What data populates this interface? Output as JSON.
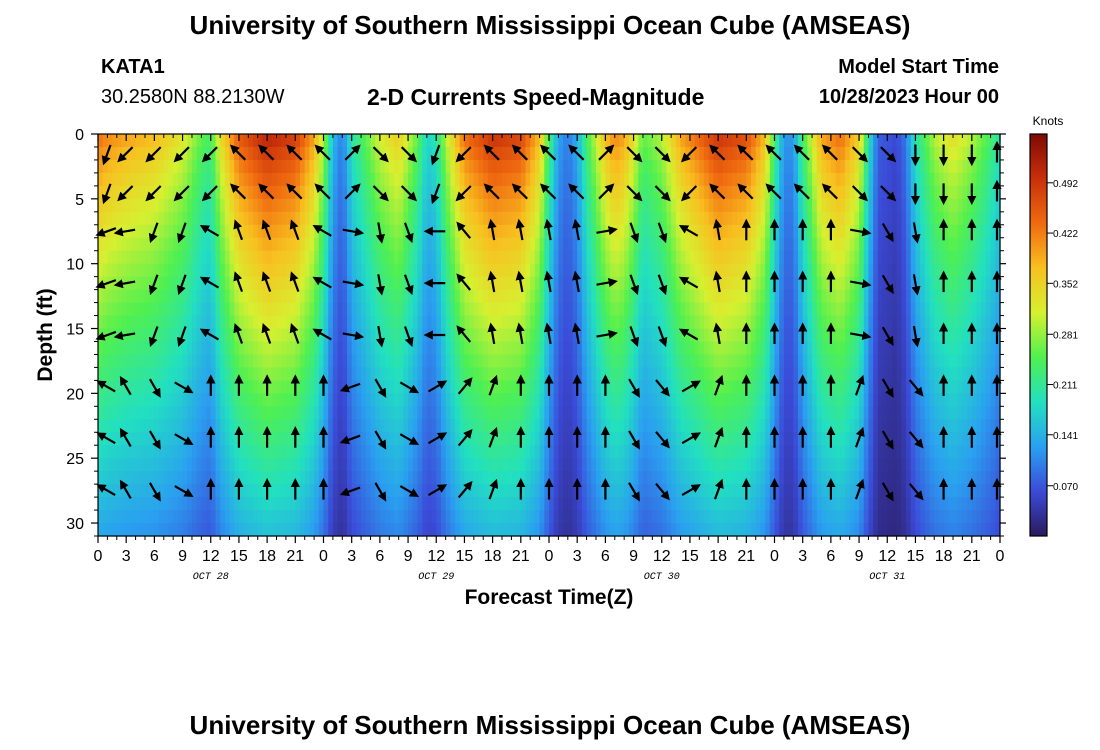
{
  "header": {
    "title": "University of Southern Mississippi Ocean Cube (AMSEAS)",
    "station_name": "KATA1",
    "station_coords": "30.2580N  88.2130W",
    "subtitle": "2-D Currents Speed-Magnitude",
    "model_start_label": "Model Start Time",
    "model_start_value": "10/28/2023 Hour 00"
  },
  "footer": {
    "title": "University of Southern Mississippi Ocean Cube (AMSEAS)"
  },
  "colors": {
    "background": "#ffffff",
    "text": "#000000",
    "colormap": [
      "#2b1a5c",
      "#3b4bd8",
      "#2aa0f0",
      "#22e0c0",
      "#50f050",
      "#d6f030",
      "#f8c020",
      "#f06a10",
      "#c8300a",
      "#7e0a04"
    ]
  },
  "chart_data": {
    "type": "heatmap",
    "title": "2-D Currents Speed-Magnitude",
    "xlabel": "Forecast Time(Z)",
    "ylabel": "Depth (ft)",
    "colorbar_label": "Knots",
    "x_range_hours": [
      0,
      96
    ],
    "ylim": [
      0,
      31
    ],
    "y_inverted": true,
    "x_ticks": [
      0,
      3,
      6,
      9,
      12,
      15,
      18,
      21,
      24,
      27,
      30,
      33,
      36,
      39,
      42,
      45,
      48,
      51,
      54,
      57,
      60,
      63,
      66,
      69,
      72,
      75,
      78,
      81,
      84,
      87,
      90,
      93,
      96
    ],
    "x_tick_labels": [
      "0",
      "3",
      "6",
      "9",
      "12",
      "15",
      "18",
      "21",
      "0",
      "3",
      "6",
      "9",
      "12",
      "15",
      "18",
      "21",
      "0",
      "3",
      "6",
      "9",
      "12",
      "15",
      "18",
      "21",
      "0",
      "3",
      "6",
      "9",
      "12",
      "15",
      "18",
      "21",
      "0"
    ],
    "date_labels": [
      {
        "hour": 12,
        "text": "OCT 28"
      },
      {
        "hour": 36,
        "text": "OCT 29"
      },
      {
        "hour": 60,
        "text": "OCT 30"
      },
      {
        "hour": 84,
        "text": "OCT 31"
      }
    ],
    "y_ticks": [
      0,
      5,
      10,
      15,
      20,
      25,
      30
    ],
    "colorbar_range": [
      0.0,
      0.56
    ],
    "colorbar_ticks": [
      0.07,
      0.141,
      0.211,
      0.281,
      0.352,
      0.422,
      0.492
    ],
    "colorbar_tick_labels": [
      "0.070",
      "0.141",
      "0.211",
      "0.281",
      "0.352",
      "0.422",
      "0.492"
    ],
    "depth_levels_ft": [
      1.5,
      4.5,
      7.5,
      11.5,
      15.5,
      19.5,
      23.5,
      27.5
    ],
    "surface_speed_profile": [
      {
        "hour": 0,
        "speed": 0.44
      },
      {
        "hour": 1,
        "speed": 0.42
      },
      {
        "hour": 3,
        "speed": 0.4
      },
      {
        "hour": 6,
        "speed": 0.38
      },
      {
        "hour": 9,
        "speed": 0.33
      },
      {
        "hour": 11,
        "speed": 0.26
      },
      {
        "hour": 12,
        "speed": 0.24
      },
      {
        "hour": 13,
        "speed": 0.34
      },
      {
        "hour": 15,
        "speed": 0.46
      },
      {
        "hour": 18,
        "speed": 0.52
      },
      {
        "hour": 21,
        "speed": 0.49
      },
      {
        "hour": 23,
        "speed": 0.4
      },
      {
        "hour": 24,
        "speed": 0.3
      },
      {
        "hour": 25,
        "speed": 0.15
      },
      {
        "hour": 26,
        "speed": 0.1
      },
      {
        "hour": 27,
        "speed": 0.2
      },
      {
        "hour": 30,
        "speed": 0.32
      },
      {
        "hour": 32,
        "speed": 0.36
      },
      {
        "hour": 34,
        "speed": 0.26
      },
      {
        "hour": 35,
        "speed": 0.18
      },
      {
        "hour": 36,
        "speed": 0.2
      },
      {
        "hour": 37,
        "speed": 0.3
      },
      {
        "hour": 39,
        "speed": 0.44
      },
      {
        "hour": 42,
        "speed": 0.5
      },
      {
        "hour": 45,
        "speed": 0.48
      },
      {
        "hour": 47,
        "speed": 0.38
      },
      {
        "hour": 48,
        "speed": 0.24
      },
      {
        "hour": 49,
        "speed": 0.13
      },
      {
        "hour": 50,
        "speed": 0.1
      },
      {
        "hour": 51,
        "speed": 0.14
      },
      {
        "hour": 52,
        "speed": 0.24
      },
      {
        "hour": 54,
        "speed": 0.38
      },
      {
        "hour": 55,
        "speed": 0.42
      },
      {
        "hour": 56,
        "speed": 0.4
      },
      {
        "hour": 57,
        "speed": 0.34
      },
      {
        "hour": 58,
        "speed": 0.26
      },
      {
        "hour": 60,
        "speed": 0.3
      },
      {
        "hour": 62,
        "speed": 0.4
      },
      {
        "hour": 66,
        "speed": 0.5
      },
      {
        "hour": 69,
        "speed": 0.47
      },
      {
        "hour": 71,
        "speed": 0.38
      },
      {
        "hour": 72,
        "speed": 0.24
      },
      {
        "hour": 73,
        "speed": 0.12
      },
      {
        "hour": 74,
        "speed": 0.12
      },
      {
        "hour": 75,
        "speed": 0.24
      },
      {
        "hour": 77,
        "speed": 0.4
      },
      {
        "hour": 79,
        "speed": 0.44
      },
      {
        "hour": 81,
        "speed": 0.36
      },
      {
        "hour": 82,
        "speed": 0.2
      },
      {
        "hour": 83,
        "speed": 0.08
      },
      {
        "hour": 85,
        "speed": 0.06
      },
      {
        "hour": 86,
        "speed": 0.1
      },
      {
        "hour": 87,
        "speed": 0.2
      },
      {
        "hour": 89,
        "speed": 0.3
      },
      {
        "hour": 91,
        "speed": 0.34
      },
      {
        "hour": 93,
        "speed": 0.3
      },
      {
        "hour": 95,
        "speed": 0.24
      },
      {
        "hour": 96,
        "speed": 0.2
      }
    ],
    "deep_speed_ratio": 0.3,
    "vector_columns_hours": [
      1,
      3,
      6,
      9,
      12,
      15,
      18,
      21,
      24,
      27,
      30,
      33,
      36,
      39,
      42,
      45,
      48,
      51,
      54,
      57,
      60,
      63,
      66,
      69,
      72,
      75,
      78,
      81,
      84,
      87,
      90,
      93,
      96
    ],
    "vector_directions_by_depth": {
      "surface": [
        200,
        225,
        225,
        225,
        225,
        315,
        315,
        315,
        315,
        45,
        135,
        135,
        200,
        225,
        315,
        315,
        315,
        315,
        45,
        135,
        135,
        225,
        315,
        315,
        315,
        315,
        315,
        135,
        135,
        180,
        180,
        180,
        0
      ],
      "mid": [
        250,
        260,
        200,
        200,
        300,
        340,
        340,
        340,
        300,
        100,
        170,
        160,
        270,
        320,
        350,
        350,
        350,
        350,
        80,
        160,
        160,
        300,
        350,
        0,
        0,
        0,
        0,
        100,
        150,
        170,
        0,
        0,
        0
      ],
      "deep": [
        300,
        330,
        150,
        120,
        0,
        0,
        0,
        0,
        0,
        250,
        150,
        120,
        60,
        40,
        20,
        0,
        0,
        0,
        0,
        150,
        140,
        60,
        20,
        0,
        0,
        0,
        0,
        20,
        150,
        140,
        0,
        0,
        0
      ]
    }
  }
}
